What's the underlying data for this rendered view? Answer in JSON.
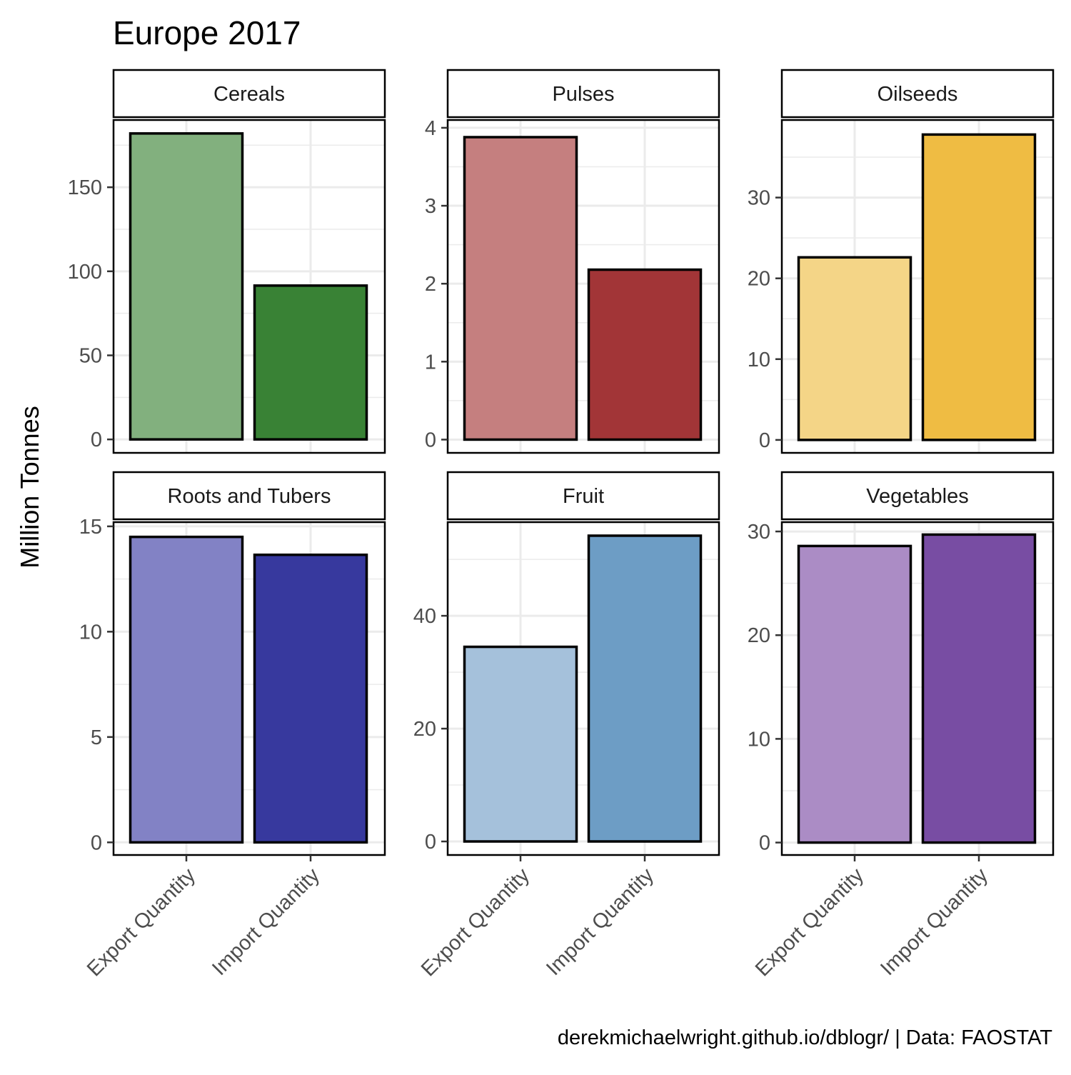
{
  "chart_data": {
    "type": "bar",
    "title": "Europe 2017",
    "ylabel": "Million Tonnes",
    "xlabel": "",
    "caption": "derekmichaelwright.github.io/dblogr/ | Data: FAOSTAT",
    "categories": [
      "Export Quantity",
      "Import Quantity"
    ],
    "grid": true,
    "panels": [
      {
        "name": "Cereals",
        "values": [
          182,
          91.5
        ],
        "ylim": [
          -8,
          190
        ],
        "yticks": [
          0,
          50,
          100,
          150
        ],
        "colors": [
          "#7fae7b",
          "#357f31"
        ]
      },
      {
        "name": "Pulses",
        "values": [
          3.88,
          2.18
        ],
        "ylim": [
          -0.17,
          4.1
        ],
        "yticks": [
          0,
          1,
          2,
          3,
          4
        ],
        "colors": [
          "#c47c7c",
          "#a03133"
        ]
      },
      {
        "name": "Oilseeds",
        "values": [
          22.6,
          37.8
        ],
        "ylim": [
          -1.6,
          39.6
        ],
        "yticks": [
          0,
          10,
          20,
          30
        ],
        "colors": [
          "#f4d485",
          "#efbb3f"
        ]
      },
      {
        "name": "Roots and Tubers",
        "values": [
          14.5,
          13.65
        ],
        "ylim": [
          -0.6,
          15.2
        ],
        "yticks": [
          0,
          5,
          10,
          15
        ],
        "colors": [
          "#8080c4",
          "#33359c"
        ]
      },
      {
        "name": "Fruit",
        "values": [
          34.5,
          54.2
        ],
        "ylim": [
          -2.4,
          56.6
        ],
        "yticks": [
          0,
          20,
          40
        ],
        "colors": [
          "#a3c0da",
          "#6a9bc4"
        ]
      },
      {
        "name": "Vegetables",
        "values": [
          28.6,
          29.7
        ],
        "ylim": [
          -1.2,
          30.9
        ],
        "yticks": [
          0,
          10,
          20,
          30
        ],
        "colors": [
          "#a98ac4",
          "#7549a1"
        ]
      }
    ]
  }
}
